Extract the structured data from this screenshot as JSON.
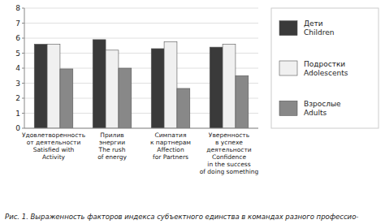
{
  "chart_data": {
    "type": "bar",
    "categories": [
      "Удовлетворенность\nот деятельности\nSatisfied with\nActivity",
      "Прилив\nэнергии\nThe rush\nof energy",
      "Симпатия\nк партнерам\nAffection\nfor Partners",
      "Уверенность\nв успехе\nдеятельности\nConfidence\nin the success\nof doing something"
    ],
    "series": [
      {
        "name": "Дети\nChildren",
        "color": "#3a3a3a",
        "values": [
          5.6,
          5.9,
          5.3,
          5.4
        ]
      },
      {
        "name": "Подростки\nAdolescents",
        "color": "#f0f0f0",
        "values": [
          5.6,
          5.2,
          5.75,
          5.6
        ]
      },
      {
        "name": "Взрослые\nAdults",
        "color": "#888888",
        "values": [
          3.95,
          4.0,
          2.65,
          3.5
        ]
      }
    ],
    "ylim": [
      0,
      8
    ],
    "yticks": [
      0,
      1,
      2,
      3,
      4,
      5,
      6,
      7,
      8
    ],
    "grid": true,
    "caption": "Рис. 1. Выраженность факторов индекса субъектного единства в командах разного профессио-"
  }
}
